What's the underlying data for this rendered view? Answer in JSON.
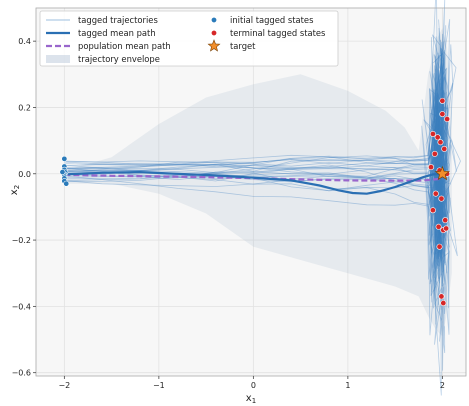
{
  "chart_data": {
    "type": "line",
    "xlabel": "x",
    "xlabel_sub": "1",
    "ylabel": "x",
    "ylabel_sub": "2",
    "xlim": [
      -2.3,
      2.25
    ],
    "ylim": [
      -0.61,
      0.5
    ],
    "xticks": [
      -2,
      -1,
      0,
      1,
      2
    ],
    "yticks": [
      -0.6,
      -0.4,
      -0.2,
      0.0,
      0.2,
      0.4
    ],
    "xtick_labels": [
      "−2",
      "−1",
      "0",
      "1",
      "2"
    ],
    "ytick_labels": [
      "−0.6",
      "−0.4",
      "−0.2",
      "0.0",
      "0.2",
      "0.4"
    ],
    "grid": true,
    "legend_position": "top-left",
    "legend": {
      "col1": [
        {
          "key": "tagged",
          "label": "tagged trajectories"
        },
        {
          "key": "tmean",
          "label": "tagged mean path"
        },
        {
          "key": "pmean",
          "label": "population mean path"
        },
        {
          "key": "env",
          "label": "trajectory envelope"
        }
      ],
      "col2": [
        {
          "key": "init",
          "label": "initial tagged states"
        },
        {
          "key": "term",
          "label": "terminal tagged states"
        },
        {
          "key": "target",
          "label": "target"
        }
      ]
    },
    "colors": {
      "trajectory": "#3d7fbf",
      "tagged_mean": "#2a6fb3",
      "population_mean": "#9966cc",
      "envelope": "#9bb0c8",
      "initial": "#2b7bba",
      "terminal": "#d62728",
      "target": "#f28e2b"
    },
    "envelope_upper": [
      [
        -2.0,
        0.01
      ],
      [
        -1.5,
        0.05
      ],
      [
        -1.0,
        0.15
      ],
      [
        -0.5,
        0.23
      ],
      [
        0.0,
        0.27
      ],
      [
        0.5,
        0.3
      ],
      [
        1.0,
        0.25
      ],
      [
        1.4,
        0.19
      ],
      [
        1.6,
        0.14
      ],
      [
        1.75,
        0.07
      ],
      [
        1.85,
        0.3
      ],
      [
        1.95,
        0.41
      ],
      [
        2.0,
        0.44
      ],
      [
        2.05,
        0.38
      ],
      [
        2.1,
        0.22
      ]
    ],
    "envelope_lower": [
      [
        2.1,
        -0.3
      ],
      [
        2.05,
        -0.42
      ],
      [
        2.0,
        -0.49
      ],
      [
        1.93,
        -0.47
      ],
      [
        1.85,
        -0.43
      ],
      [
        1.75,
        -0.37
      ],
      [
        1.5,
        -0.34
      ],
      [
        1.0,
        -0.3
      ],
      [
        0.5,
        -0.26
      ],
      [
        0.0,
        -0.22
      ],
      [
        -0.5,
        -0.12
      ],
      [
        -1.0,
        -0.06
      ],
      [
        -1.5,
        -0.03
      ],
      [
        -2.0,
        -0.03
      ]
    ],
    "tagged_mean_path": [
      [
        -2.0,
        -0.002
      ],
      [
        -1.6,
        0.003
      ],
      [
        -1.2,
        0.005
      ],
      [
        -0.8,
        0.0
      ],
      [
        -0.4,
        -0.005
      ],
      [
        0.0,
        -0.012
      ],
      [
        0.4,
        -0.02
      ],
      [
        0.7,
        -0.035
      ],
      [
        0.9,
        -0.05
      ],
      [
        1.05,
        -0.058
      ],
      [
        1.2,
        -0.06
      ],
      [
        1.35,
        -0.052
      ],
      [
        1.5,
        -0.04
      ],
      [
        1.65,
        -0.025
      ],
      [
        1.8,
        -0.01
      ],
      [
        1.9,
        -0.002
      ],
      [
        2.0,
        0.0
      ]
    ],
    "population_mean_path": [
      [
        -2.0,
        -0.003
      ],
      [
        -1.5,
        -0.006
      ],
      [
        -1.0,
        -0.008
      ],
      [
        -0.5,
        -0.01
      ],
      [
        0.0,
        -0.013
      ],
      [
        0.5,
        -0.017
      ],
      [
        1.0,
        -0.02
      ],
      [
        1.5,
        -0.021
      ],
      [
        1.8,
        -0.02
      ],
      [
        2.0,
        -0.015
      ]
    ],
    "initial_states": [
      [
        -2.0,
        0.045
      ],
      [
        -2.0,
        0.022
      ],
      [
        -2.0,
        0.012
      ],
      [
        -1.99,
        0.004
      ],
      [
        -2.0,
        -0.002
      ],
      [
        -2.0,
        -0.008
      ],
      [
        -2.0,
        -0.014
      ],
      [
        -2.0,
        -0.022
      ],
      [
        -1.98,
        -0.03
      ],
      [
        -2.02,
        0.005
      ]
    ],
    "terminal_states": [
      [
        2.0,
        0.22
      ],
      [
        2.0,
        0.18
      ],
      [
        2.05,
        0.165
      ],
      [
        1.9,
        0.12
      ],
      [
        1.95,
        0.11
      ],
      [
        1.98,
        0.095
      ],
      [
        2.02,
        0.075
      ],
      [
        1.92,
        0.06
      ],
      [
        1.88,
        0.02
      ],
      [
        1.97,
        0.01
      ],
      [
        2.05,
        0.0
      ],
      [
        1.93,
        -0.06
      ],
      [
        1.99,
        -0.075
      ],
      [
        1.9,
        -0.11
      ],
      [
        2.03,
        -0.14
      ],
      [
        1.96,
        -0.16
      ],
      [
        2.01,
        -0.17
      ],
      [
        2.04,
        -0.165
      ],
      [
        1.97,
        -0.22
      ],
      [
        1.99,
        -0.37
      ],
      [
        2.01,
        -0.39
      ]
    ],
    "target": [
      2.0,
      0.0
    ]
  }
}
